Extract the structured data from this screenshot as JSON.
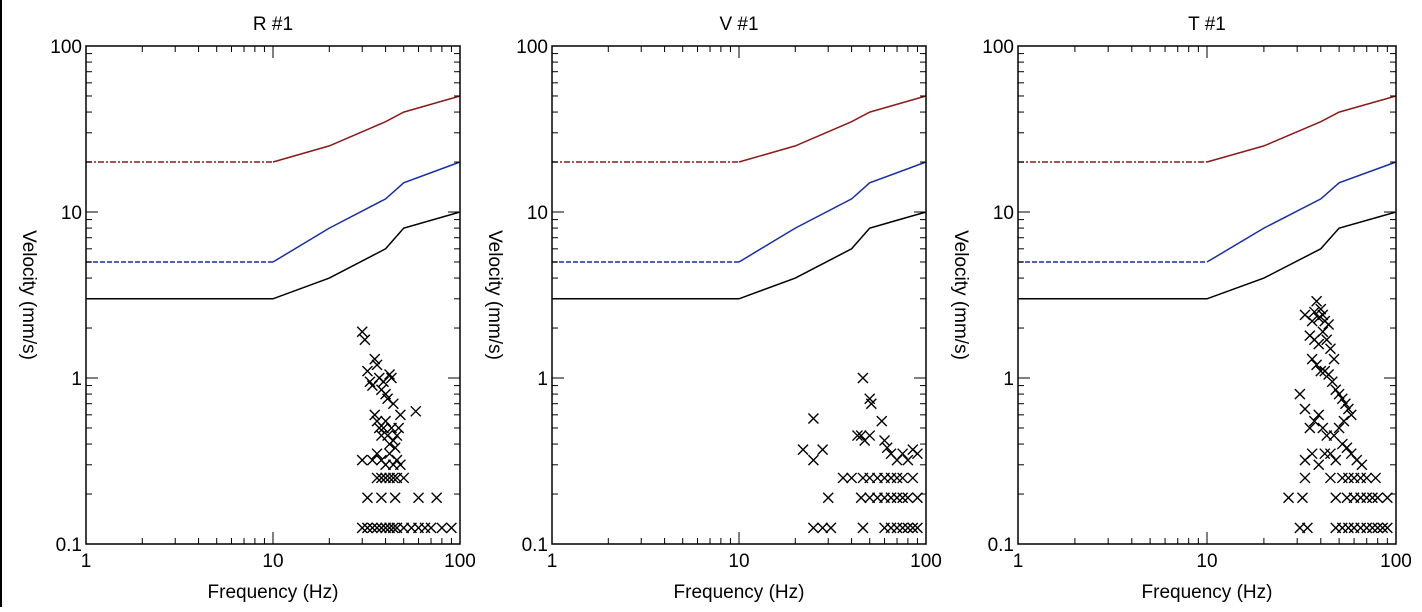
{
  "colors": {
    "red_limit": "#8b1a1a",
    "blue_limit": "#1a2f9e",
    "black_limit": "#000000",
    "marker": "#000000"
  },
  "chart_data": [
    {
      "type": "scatter",
      "title": "R #1",
      "xlabel": "Frequency (Hz)",
      "ylabel": "Velocity (mm/s)",
      "xscale": "log",
      "yscale": "log",
      "xlim": [
        1,
        100
      ],
      "ylim": [
        0.1,
        100
      ],
      "xticks": [
        "1",
        "10",
        "100"
      ],
      "yticks": [
        "0.1",
        "1",
        "10",
        "100"
      ],
      "limit_curves": [
        {
          "color": "#8b1a1a",
          "dash": "dashdot",
          "x": [
            1,
            10
          ],
          "y": [
            20,
            20
          ]
        },
        {
          "color": "#8b1a1a",
          "dash": "solid",
          "x": [
            10,
            20,
            40,
            50,
            100
          ],
          "y": [
            20,
            25,
            35,
            40,
            50
          ]
        },
        {
          "color": "#1a2f9e",
          "dash": "dashed",
          "x": [
            1,
            10
          ],
          "y": [
            5,
            5
          ]
        },
        {
          "color": "#1a2f9e",
          "dash": "solid",
          "x": [
            10,
            20,
            40,
            50,
            100
          ],
          "y": [
            5,
            8,
            12,
            15,
            20
          ]
        },
        {
          "color": "#000000",
          "dash": "solid",
          "x": [
            1,
            10,
            20,
            40,
            50,
            100
          ],
          "y": [
            3,
            3,
            4,
            6,
            8,
            10
          ]
        }
      ],
      "points": [
        [
          30,
          1.9
        ],
        [
          31,
          1.7
        ],
        [
          32,
          1.1
        ],
        [
          33,
          0.95
        ],
        [
          34,
          0.9
        ],
        [
          35,
          1.3
        ],
        [
          36,
          1.2
        ],
        [
          37,
          1.0
        ],
        [
          38,
          0.85
        ],
        [
          39,
          0.95
        ],
        [
          40,
          0.8
        ],
        [
          41,
          0.75
        ],
        [
          42,
          1.05
        ],
        [
          43,
          1.0
        ],
        [
          44,
          0.7
        ],
        [
          35,
          0.6
        ],
        [
          36,
          0.55
        ],
        [
          37,
          0.5
        ],
        [
          38,
          0.45
        ],
        [
          39,
          0.5
        ],
        [
          40,
          0.55
        ],
        [
          41,
          0.45
        ],
        [
          42,
          0.4
        ],
        [
          43,
          0.5
        ],
        [
          44,
          0.42
        ],
        [
          45,
          0.38
        ],
        [
          46,
          0.45
        ],
        [
          47,
          0.5
        ],
        [
          48,
          0.6
        ],
        [
          58,
          0.63
        ],
        [
          30,
          0.32
        ],
        [
          34,
          0.32
        ],
        [
          36,
          0.35
        ],
        [
          38,
          0.32
        ],
        [
          40,
          0.3
        ],
        [
          42,
          0.35
        ],
        [
          44,
          0.3
        ],
        [
          46,
          0.32
        ],
        [
          48,
          0.3
        ],
        [
          36,
          0.25
        ],
        [
          38,
          0.25
        ],
        [
          40,
          0.25
        ],
        [
          42,
          0.25
        ],
        [
          44,
          0.25
        ],
        [
          46,
          0.25
        ],
        [
          50,
          0.25
        ],
        [
          32,
          0.19
        ],
        [
          38,
          0.19
        ],
        [
          45,
          0.19
        ],
        [
          60,
          0.19
        ],
        [
          75,
          0.19
        ],
        [
          30,
          0.125
        ],
        [
          32,
          0.125
        ],
        [
          34,
          0.125
        ],
        [
          36,
          0.125
        ],
        [
          38,
          0.125
        ],
        [
          40,
          0.125
        ],
        [
          42,
          0.125
        ],
        [
          44,
          0.125
        ],
        [
          46,
          0.125
        ],
        [
          50,
          0.125
        ],
        [
          55,
          0.125
        ],
        [
          60,
          0.125
        ],
        [
          65,
          0.125
        ],
        [
          70,
          0.125
        ],
        [
          80,
          0.125
        ],
        [
          90,
          0.125
        ]
      ]
    },
    {
      "type": "scatter",
      "title": "V #1",
      "xlabel": "Frequency (Hz)",
      "ylabel": "Velocity (mm/s)",
      "xscale": "log",
      "yscale": "log",
      "xlim": [
        1,
        100
      ],
      "ylim": [
        0.1,
        100
      ],
      "xticks": [
        "1",
        "10",
        "100"
      ],
      "yticks": [
        "0.1",
        "1",
        "10",
        "100"
      ],
      "limit_curves": [
        {
          "color": "#8b1a1a",
          "dash": "dashdot",
          "x": [
            1,
            10
          ],
          "y": [
            20,
            20
          ]
        },
        {
          "color": "#8b1a1a",
          "dash": "solid",
          "x": [
            10,
            20,
            40,
            50,
            100
          ],
          "y": [
            20,
            25,
            35,
            40,
            50
          ]
        },
        {
          "color": "#1a2f9e",
          "dash": "dashed",
          "x": [
            1,
            10
          ],
          "y": [
            5,
            5
          ]
        },
        {
          "color": "#1a2f9e",
          "dash": "solid",
          "x": [
            10,
            20,
            40,
            50,
            100
          ],
          "y": [
            5,
            8,
            12,
            15,
            20
          ]
        },
        {
          "color": "#000000",
          "dash": "solid",
          "x": [
            1,
            10,
            20,
            40,
            50,
            100
          ],
          "y": [
            3,
            3,
            4,
            6,
            8,
            10
          ]
        }
      ],
      "points": [
        [
          46,
          1.0
        ],
        [
          50,
          0.75
        ],
        [
          51,
          0.7
        ],
        [
          25,
          0.57
        ],
        [
          58,
          0.55
        ],
        [
          22,
          0.37
        ],
        [
          28,
          0.37
        ],
        [
          25,
          0.32
        ],
        [
          43,
          0.45
        ],
        [
          45,
          0.45
        ],
        [
          47,
          0.42
        ],
        [
          50,
          0.45
        ],
        [
          60,
          0.42
        ],
        [
          62,
          0.38
        ],
        [
          65,
          0.35
        ],
        [
          70,
          0.32
        ],
        [
          75,
          0.35
        ],
        [
          80,
          0.32
        ],
        [
          85,
          0.37
        ],
        [
          90,
          0.35
        ],
        [
          30,
          0.19
        ],
        [
          36,
          0.25
        ],
        [
          40,
          0.25
        ],
        [
          46,
          0.25
        ],
        [
          50,
          0.25
        ],
        [
          55,
          0.25
        ],
        [
          60,
          0.25
        ],
        [
          65,
          0.25
        ],
        [
          70,
          0.25
        ],
        [
          75,
          0.25
        ],
        [
          85,
          0.25
        ],
        [
          45,
          0.19
        ],
        [
          50,
          0.19
        ],
        [
          55,
          0.19
        ],
        [
          60,
          0.19
        ],
        [
          65,
          0.19
        ],
        [
          70,
          0.19
        ],
        [
          75,
          0.19
        ],
        [
          80,
          0.19
        ],
        [
          90,
          0.19
        ],
        [
          25,
          0.125
        ],
        [
          28,
          0.125
        ],
        [
          31,
          0.125
        ],
        [
          46,
          0.125
        ],
        [
          60,
          0.125
        ],
        [
          65,
          0.125
        ],
        [
          70,
          0.125
        ],
        [
          75,
          0.125
        ],
        [
          80,
          0.125
        ],
        [
          85,
          0.125
        ],
        [
          90,
          0.125
        ]
      ]
    },
    {
      "type": "scatter",
      "title": "T #1",
      "xlabel": "Frequency (Hz)",
      "ylabel": "Velocity (mm/s)",
      "xscale": "log",
      "yscale": "log",
      "xlim": [
        1,
        100
      ],
      "ylim": [
        0.1,
        100
      ],
      "xticks": [
        "1",
        "10",
        "100"
      ],
      "yticks": [
        "0.1",
        "1",
        "10",
        "100"
      ],
      "limit_curves": [
        {
          "color": "#8b1a1a",
          "dash": "dashdot",
          "x": [
            1,
            10
          ],
          "y": [
            20,
            20
          ]
        },
        {
          "color": "#8b1a1a",
          "dash": "solid",
          "x": [
            10,
            20,
            40,
            50,
            100
          ],
          "y": [
            20,
            25,
            35,
            40,
            50
          ]
        },
        {
          "color": "#1a2f9e",
          "dash": "dashed",
          "x": [
            1,
            10
          ],
          "y": [
            5,
            5
          ]
        },
        {
          "color": "#1a2f9e",
          "dash": "solid",
          "x": [
            10,
            20,
            40,
            50,
            100
          ],
          "y": [
            5,
            8,
            12,
            15,
            20
          ]
        },
        {
          "color": "#000000",
          "dash": "solid",
          "x": [
            1,
            10,
            20,
            40,
            50,
            100
          ],
          "y": [
            3,
            3,
            4,
            6,
            8,
            10
          ]
        }
      ],
      "points": [
        [
          38,
          2.9
        ],
        [
          40,
          2.6
        ],
        [
          37,
          2.5
        ],
        [
          41,
          2.4
        ],
        [
          39,
          2.3
        ],
        [
          36,
          2.2
        ],
        [
          42,
          2.2
        ],
        [
          44,
          2.1
        ],
        [
          33,
          2.4
        ],
        [
          35,
          1.8
        ],
        [
          37,
          1.7
        ],
        [
          39,
          1.6
        ],
        [
          41,
          1.9
        ],
        [
          43,
          1.7
        ],
        [
          45,
          1.5
        ],
        [
          47,
          1.3
        ],
        [
          36,
          1.3
        ],
        [
          38,
          1.2
        ],
        [
          40,
          1.1
        ],
        [
          42,
          1.1
        ],
        [
          44,
          1.05
        ],
        [
          46,
          0.95
        ],
        [
          48,
          0.85
        ],
        [
          50,
          0.8
        ],
        [
          52,
          0.75
        ],
        [
          54,
          0.7
        ],
        [
          56,
          0.65
        ],
        [
          58,
          0.6
        ],
        [
          31,
          0.8
        ],
        [
          33,
          0.65
        ],
        [
          35,
          0.5
        ],
        [
          37,
          0.55
        ],
        [
          39,
          0.6
        ],
        [
          41,
          0.5
        ],
        [
          43,
          0.45
        ],
        [
          47,
          0.45
        ],
        [
          50,
          0.5
        ],
        [
          53,
          0.55
        ],
        [
          33,
          0.32
        ],
        [
          36,
          0.35
        ],
        [
          39,
          0.3
        ],
        [
          42,
          0.35
        ],
        [
          45,
          0.35
        ],
        [
          48,
          0.32
        ],
        [
          52,
          0.4
        ],
        [
          55,
          0.38
        ],
        [
          58,
          0.35
        ],
        [
          62,
          0.32
        ],
        [
          66,
          0.3
        ],
        [
          33,
          0.25
        ],
        [
          45,
          0.25
        ],
        [
          52,
          0.25
        ],
        [
          56,
          0.25
        ],
        [
          60,
          0.25
        ],
        [
          65,
          0.25
        ],
        [
          70,
          0.25
        ],
        [
          78,
          0.25
        ],
        [
          27,
          0.19
        ],
        [
          32,
          0.19
        ],
        [
          48,
          0.19
        ],
        [
          55,
          0.19
        ],
        [
          60,
          0.19
        ],
        [
          65,
          0.19
        ],
        [
          70,
          0.19
        ],
        [
          75,
          0.19
        ],
        [
          80,
          0.19
        ],
        [
          90,
          0.19
        ],
        [
          31,
          0.125
        ],
        [
          34,
          0.125
        ],
        [
          48,
          0.125
        ],
        [
          52,
          0.125
        ],
        [
          56,
          0.125
        ],
        [
          60,
          0.125
        ],
        [
          65,
          0.125
        ],
        [
          70,
          0.125
        ],
        [
          75,
          0.125
        ],
        [
          80,
          0.125
        ],
        [
          85,
          0.125
        ],
        [
          90,
          0.125
        ]
      ]
    }
  ]
}
